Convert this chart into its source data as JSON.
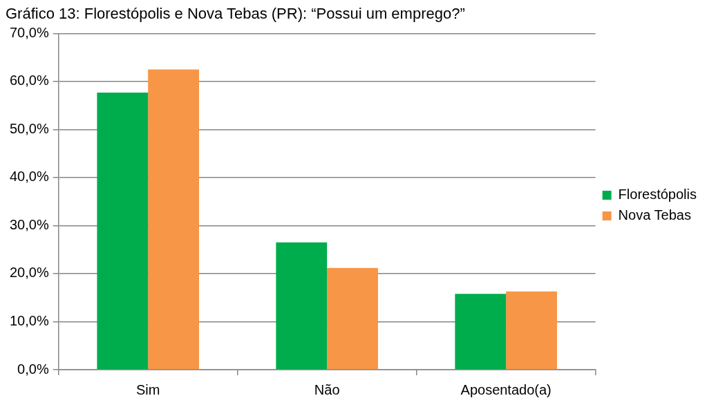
{
  "chart_data": {
    "type": "bar",
    "title": "Gráfico 13: Florestópolis e Nova Tebas (PR): “Possui um emprego?”",
    "categories": [
      "Sim",
      "Não",
      "Aposentado(a)"
    ],
    "series": [
      {
        "name": "Florestópolis",
        "color": "#00ad4d",
        "values": [
          57.7,
          26.5,
          15.8
        ]
      },
      {
        "name": "Nova Tebas",
        "color": "#f79646",
        "values": [
          62.5,
          21.2,
          16.3
        ]
      }
    ],
    "ylim": [
      0,
      70
    ],
    "yticks": [
      {
        "value": 0,
        "label": "0,0%"
      },
      {
        "value": 10,
        "label": "10,0%"
      },
      {
        "value": 20,
        "label": "20,0%"
      },
      {
        "value": 30,
        "label": "30,0%"
      },
      {
        "value": 40,
        "label": "40,0%"
      },
      {
        "value": 50,
        "label": "50,0%"
      },
      {
        "value": 60,
        "label": "60,0%"
      },
      {
        "value": 70,
        "label": "70,0%"
      }
    ],
    "grid": "y",
    "legend": "right"
  }
}
